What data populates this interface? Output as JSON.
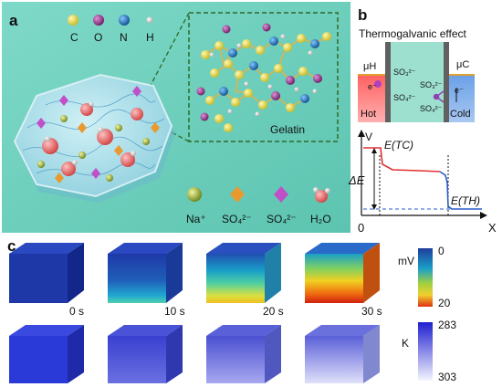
{
  "panel_a": {
    "letter": "a",
    "atom_legend": [
      {
        "symbol": "C",
        "color": "#e8d83a"
      },
      {
        "symbol": "O",
        "color": "#8a2a78"
      },
      {
        "symbol": "N",
        "color": "#1f6fb5"
      },
      {
        "symbol": "H",
        "color": "#dcdcdc"
      }
    ],
    "zoom_label": "Gelatin",
    "species_legend": [
      {
        "label": "Na⁺",
        "icon": "sphere-icon",
        "color": "#a7b83a"
      },
      {
        "label": "SO₄²⁻",
        "icon": "orange-diamond-icon",
        "color": "#e89a30"
      },
      {
        "label": "SO₄²⁻",
        "icon": "purple-diamond-icon",
        "color": "#c050c8"
      },
      {
        "label": "H₂O",
        "icon": "water-molecule-icon",
        "color": "#c0302a"
      }
    ]
  },
  "panel_b": {
    "letter": "b",
    "title": "Thermogalvanic effect",
    "mu_hot": "μH",
    "mu_cold": "μC",
    "hot_label": "Hot",
    "cold_label": "Cold",
    "electron": "e⁻",
    "ion_left_top": "SO₃²⁻",
    "ion_left_bottom": "SO₄²⁻",
    "ion_right_top": "SO₃²⁻",
    "ion_right_bottom": "SO₄²⁻",
    "axis_y": "V",
    "axis_x": "X",
    "origin": "0",
    "e_tc": "E(TC)",
    "e_th": "E(TH)",
    "delta_e": "ΔE"
  },
  "panel_c": {
    "letter": "c",
    "times": [
      "0 s",
      "10 s",
      "20 s",
      "30 s"
    ],
    "colorbar_voltage": {
      "unit": "mV",
      "min": "0",
      "max": "20",
      "colors": [
        "#1f3d9c",
        "#1aa0c8",
        "#f0e040",
        "#e03010"
      ]
    },
    "colorbar_temp": {
      "unit": "K",
      "min": "283",
      "max": "303",
      "colors": [
        "#2a2ad8",
        "#ffffff"
      ]
    }
  }
}
